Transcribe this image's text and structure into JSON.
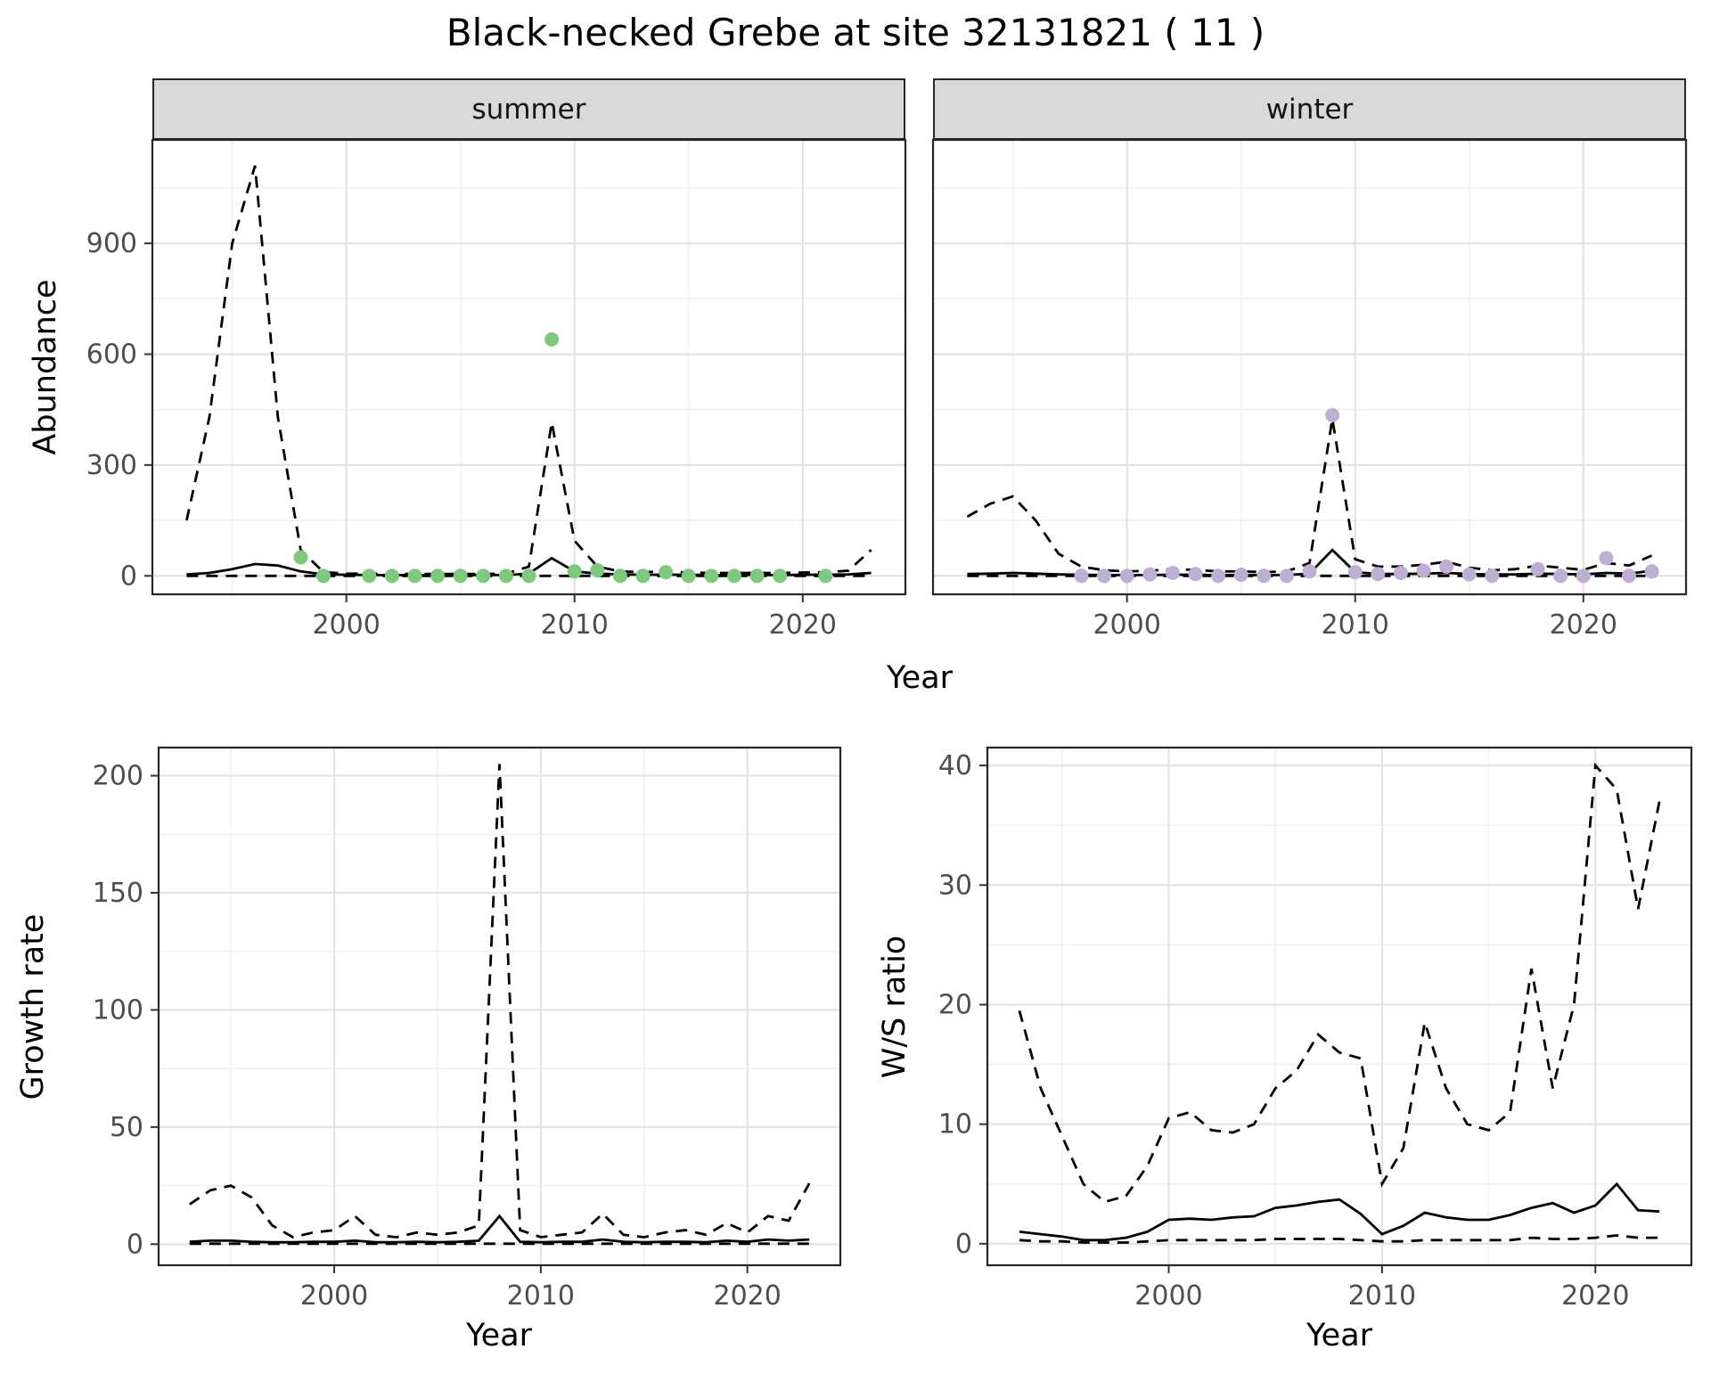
{
  "title": "Black-necked Grebe at site 32131821 ( 11 )",
  "facets": [
    "summer",
    "winter"
  ],
  "colors": {
    "summer_points": "#7FC97F",
    "winter_points": "#BEAED4",
    "line": "#000000",
    "strip_background": "#D9D9D9"
  },
  "chart_data": [
    {
      "id": "abundance-summer",
      "type": "line",
      "facet": "summer",
      "xlabel": "Year",
      "ylabel": "Abundance",
      "grid": true,
      "legend": "none",
      "xlim": [
        1991.5,
        2024.5
      ],
      "ylim": [
        -50,
        1180
      ],
      "xticks": [
        2000,
        2010,
        2020
      ],
      "xminor": [
        1995,
        2005,
        2015
      ],
      "yticks": [
        0,
        300,
        600,
        900
      ],
      "yminor": [
        150,
        450,
        750,
        1050
      ],
      "x": [
        1993,
        1994,
        1995,
        1996,
        1997,
        1998,
        1999,
        2000,
        2001,
        2002,
        2003,
        2004,
        2005,
        2006,
        2007,
        2008,
        2009,
        2010,
        2011,
        2012,
        2013,
        2014,
        2015,
        2016,
        2017,
        2018,
        2019,
        2020,
        2021,
        2022,
        2023
      ],
      "series": [
        {
          "name": "upper_ci",
          "style": "dashed",
          "values": [
            150,
            430,
            900,
            1110,
            430,
            70,
            10,
            6,
            6,
            5,
            5,
            5,
            5,
            5,
            6,
            25,
            415,
            95,
            25,
            12,
            10,
            12,
            9,
            8,
            8,
            8,
            8,
            9,
            10,
            14,
            70
          ]
        },
        {
          "name": "modelled_mean",
          "style": "solid",
          "values": [
            4,
            8,
            18,
            32,
            28,
            12,
            4,
            3,
            2,
            2,
            2,
            2,
            2,
            2,
            2,
            6,
            48,
            12,
            6,
            4,
            3,
            3,
            3,
            2,
            2,
            2,
            2,
            3,
            3,
            4,
            8
          ]
        },
        {
          "name": "lower_ci",
          "style": "dashed",
          "values": [
            0,
            0,
            0,
            0,
            0,
            0,
            0,
            0,
            0,
            0,
            0,
            0,
            0,
            0,
            0,
            0,
            0,
            0,
            0,
            0,
            0,
            0,
            0,
            0,
            0,
            0,
            0,
            0,
            0,
            0,
            0
          ]
        }
      ],
      "points": {
        "name": "observed_counts",
        "color": "#7FC97F",
        "x": [
          1998,
          1999,
          2001,
          2002,
          2003,
          2004,
          2005,
          2006,
          2007,
          2008,
          2009,
          2010,
          2011,
          2012,
          2013,
          2014,
          2015,
          2016,
          2017,
          2018,
          2019,
          2021
        ],
        "y": [
          50,
          0,
          0,
          0,
          0,
          0,
          0,
          0,
          0,
          0,
          640,
          12,
          15,
          0,
          0,
          10,
          0,
          0,
          0,
          0,
          0,
          0
        ]
      }
    },
    {
      "id": "abundance-winter",
      "type": "line",
      "facet": "winter",
      "xlabel": "Year",
      "ylabel": "Abundance",
      "grid": true,
      "legend": "none",
      "xlim": [
        1991.5,
        2024.5
      ],
      "ylim": [
        -50,
        1180
      ],
      "xticks": [
        2000,
        2010,
        2020
      ],
      "xminor": [
        1995,
        2005,
        2015
      ],
      "yticks": [
        0,
        300,
        600,
        900
      ],
      "yminor": [
        150,
        450,
        750,
        1050
      ],
      "x": [
        1993,
        1994,
        1995,
        1996,
        1997,
        1998,
        1999,
        2000,
        2001,
        2002,
        2003,
        2004,
        2005,
        2006,
        2007,
        2008,
        2009,
        2010,
        2011,
        2012,
        2013,
        2014,
        2015,
        2016,
        2017,
        2018,
        2019,
        2020,
        2021,
        2022,
        2023
      ],
      "series": [
        {
          "name": "upper_ci",
          "style": "dashed",
          "values": [
            160,
            195,
            215,
            150,
            60,
            25,
            15,
            12,
            14,
            18,
            16,
            12,
            12,
            10,
            12,
            35,
            425,
            45,
            25,
            25,
            30,
            38,
            22,
            15,
            18,
            28,
            22,
            16,
            35,
            28,
            55
          ]
        },
        {
          "name": "modelled_mean",
          "style": "solid",
          "values": [
            5,
            6,
            8,
            6,
            4,
            3,
            2,
            2,
            2,
            3,
            3,
            2,
            2,
            2,
            2,
            6,
            70,
            10,
            5,
            5,
            6,
            8,
            5,
            4,
            4,
            6,
            5,
            4,
            8,
            6,
            14
          ]
        },
        {
          "name": "lower_ci",
          "style": "dashed",
          "values": [
            0,
            0,
            0,
            0,
            0,
            0,
            0,
            0,
            0,
            0,
            0,
            0,
            0,
            0,
            0,
            0,
            0,
            0,
            0,
            0,
            0,
            0,
            0,
            0,
            0,
            0,
            0,
            0,
            0,
            0,
            0
          ]
        }
      ],
      "points": {
        "name": "observed_counts",
        "color": "#BEAED4",
        "x": [
          1998,
          1999,
          2000,
          2001,
          2002,
          2003,
          2004,
          2005,
          2006,
          2007,
          2008,
          2009,
          2010,
          2011,
          2012,
          2013,
          2014,
          2015,
          2016,
          2018,
          2019,
          2020,
          2021,
          2022,
          2023
        ],
        "y": [
          0,
          0,
          0,
          4,
          8,
          5,
          0,
          3,
          0,
          0,
          12,
          435,
          10,
          5,
          8,
          14,
          25,
          4,
          0,
          18,
          0,
          0,
          48,
          0,
          12
        ]
      }
    },
    {
      "id": "growth-rate",
      "type": "line",
      "facet": null,
      "xlabel": "Year",
      "ylabel": "Growth rate",
      "grid": true,
      "legend": "none",
      "xlim": [
        1991.5,
        2024.5
      ],
      "ylim": [
        -9,
        212
      ],
      "xticks": [
        2000,
        2010,
        2020
      ],
      "xminor": [
        1995,
        2005,
        2015
      ],
      "yticks": [
        0,
        50,
        100,
        150,
        200
      ],
      "yminor": [
        25,
        75,
        125,
        175
      ],
      "x": [
        1993,
        1994,
        1995,
        1996,
        1997,
        1998,
        1999,
        2000,
        2001,
        2002,
        2003,
        2004,
        2005,
        2006,
        2007,
        2008,
        2009,
        2010,
        2011,
        2012,
        2013,
        2014,
        2015,
        2016,
        2017,
        2018,
        2019,
        2020,
        2021,
        2022,
        2023
      ],
      "series": [
        {
          "name": "upper_ci",
          "style": "dashed",
          "values": [
            17,
            23,
            25,
            20,
            8,
            3,
            5,
            6,
            12,
            4,
            3,
            5,
            4,
            5,
            8,
            205,
            6,
            3,
            4,
            5,
            13,
            4,
            3,
            5,
            6,
            4,
            9,
            5,
            12,
            10,
            26
          ]
        },
        {
          "name": "modelled_mean",
          "style": "solid",
          "values": [
            1,
            1.5,
            1.5,
            1,
            0.8,
            0.8,
            1,
            1,
            1.5,
            0.8,
            0.8,
            1,
            0.8,
            1,
            1.5,
            12,
            1,
            0.8,
            1,
            1,
            2,
            1,
            0.8,
            1,
            1,
            0.8,
            1.5,
            1,
            2,
            1.5,
            2
          ]
        },
        {
          "name": "lower_ci",
          "style": "dashed",
          "values": [
            0.2,
            0.2,
            0.2,
            0.2,
            0.2,
            0.2,
            0.2,
            0.2,
            0.2,
            0.2,
            0.2,
            0.2,
            0.2,
            0.2,
            0.2,
            0.2,
            0.2,
            0.2,
            0.2,
            0.2,
            0.2,
            0.2,
            0.2,
            0.2,
            0.2,
            0.2,
            0.2,
            0.2,
            0.2,
            0.2,
            0.2
          ]
        }
      ],
      "points": null
    },
    {
      "id": "ws-ratio",
      "type": "line",
      "facet": null,
      "xlabel": "Year",
      "ylabel": "W/S ratio",
      "grid": true,
      "legend": "none",
      "xlim": [
        1991.5,
        2024.5
      ],
      "ylim": [
        -1.8,
        41.5
      ],
      "xticks": [
        2000,
        2010,
        2020
      ],
      "xminor": [
        1995,
        2005,
        2015
      ],
      "yticks": [
        0,
        10,
        20,
        30,
        40
      ],
      "yminor": [
        5,
        15,
        25,
        35
      ],
      "x": [
        1993,
        1994,
        1995,
        1996,
        1997,
        1998,
        1999,
        2000,
        2001,
        2002,
        2003,
        2004,
        2005,
        2006,
        2007,
        2008,
        2009,
        2010,
        2011,
        2012,
        2013,
        2014,
        2015,
        2016,
        2017,
        2018,
        2019,
        2020,
        2021,
        2022,
        2023
      ],
      "series": [
        {
          "name": "upper_ci",
          "style": "dashed",
          "values": [
            19.5,
            13,
            9,
            5,
            3.5,
            4,
            6.5,
            10.5,
            11,
            9.5,
            9.3,
            10,
            13,
            14.5,
            17.5,
            16,
            15.5,
            5,
            8,
            18.5,
            13,
            10,
            9.5,
            11,
            23,
            13,
            20,
            40,
            38,
            28,
            37
          ]
        },
        {
          "name": "modelled_mean",
          "style": "solid",
          "values": [
            1,
            0.8,
            0.6,
            0.3,
            0.3,
            0.5,
            1,
            2,
            2.1,
            2,
            2.2,
            2.3,
            3,
            3.2,
            3.5,
            3.7,
            2.5,
            0.8,
            1.5,
            2.6,
            2.2,
            2,
            2,
            2.4,
            3,
            3.4,
            2.6,
            3.2,
            5,
            2.8,
            2.7
          ]
        },
        {
          "name": "lower_ci",
          "style": "dashed",
          "values": [
            0.3,
            0.2,
            0.2,
            0.1,
            0.1,
            0.1,
            0.2,
            0.3,
            0.3,
            0.3,
            0.3,
            0.3,
            0.4,
            0.4,
            0.4,
            0.4,
            0.3,
            0.2,
            0.2,
            0.3,
            0.3,
            0.3,
            0.3,
            0.3,
            0.5,
            0.4,
            0.4,
            0.5,
            0.7,
            0.5,
            0.5
          ]
        }
      ],
      "points": null
    }
  ]
}
